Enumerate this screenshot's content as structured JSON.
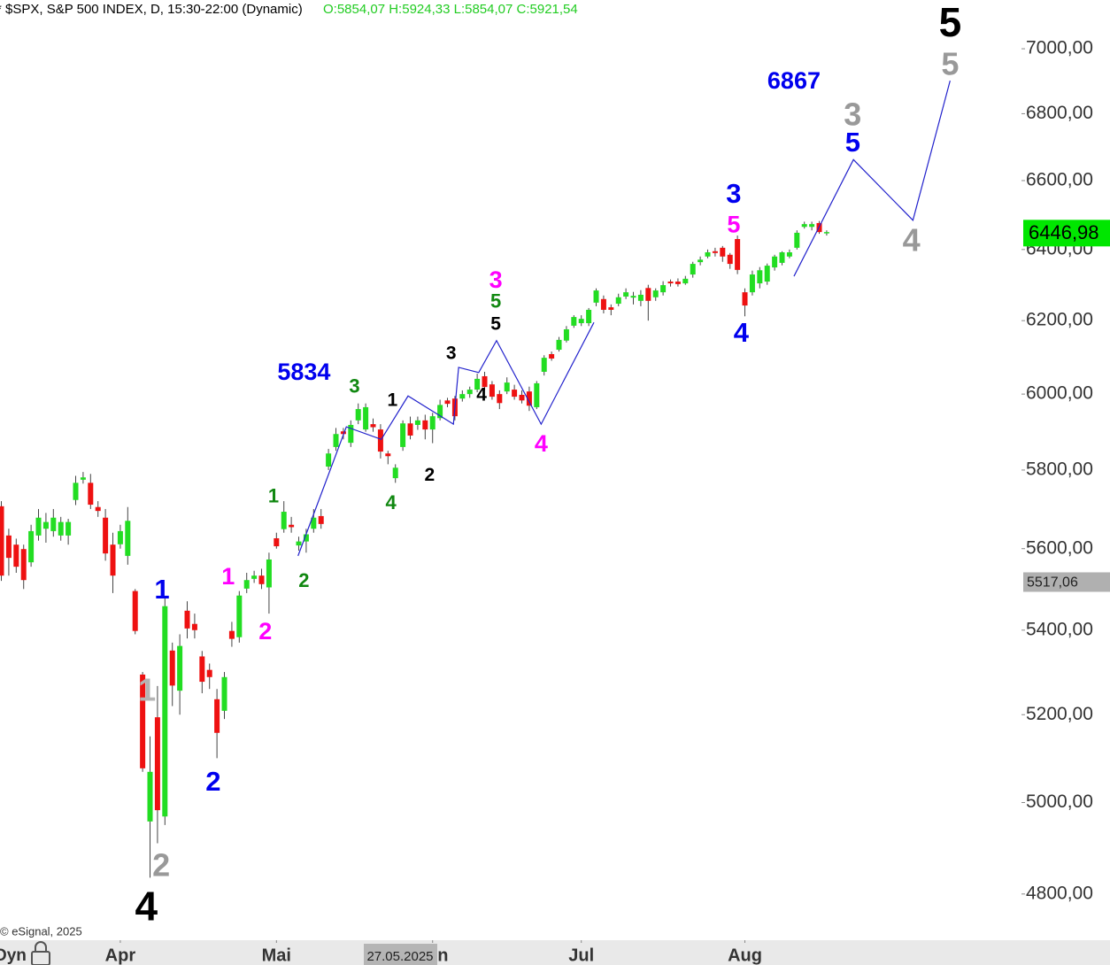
{
  "chart_data": {
    "type": "candlestick",
    "title": "$SPX, S&P 500 INDEX, D, 15:30-22:00 (Dynamic)",
    "subtitle": "O:5854,07 H:5924,33 L:5854,07 C:5921,54",
    "subtitle_color": "#22cc22",
    "log_scale": true,
    "up_color": "#22dd22",
    "down_color": "#ee1111",
    "xlim": [
      -0.18,
      137.2
    ],
    "ylim": [
      4702,
      7154
    ],
    "yticks": [
      {
        "value": 4800,
        "label": "4800,00"
      },
      {
        "value": 5000,
        "label": "5000,00"
      },
      {
        "value": 5200,
        "label": "5200,00"
      },
      {
        "value": 5400,
        "label": "5400,00"
      },
      {
        "value": 5600,
        "label": "5600,00"
      },
      {
        "value": 5800,
        "label": "5800,00"
      },
      {
        "value": 6000,
        "label": "6000,00"
      },
      {
        "value": 6200,
        "label": "6200,00"
      },
      {
        "value": 6400,
        "label": "6400,00"
      },
      {
        "value": 6600,
        "label": "6600,00"
      },
      {
        "value": 6800,
        "label": "6800,00"
      },
      {
        "value": 7000,
        "label": "7000,00"
      }
    ],
    "xticks": [
      {
        "value": 16,
        "label": "Apr"
      },
      {
        "value": 37,
        "label": "Mai"
      },
      {
        "value": 58,
        "label": "Jun"
      },
      {
        "value": 78,
        "label": "Jul"
      },
      {
        "value": 100,
        "label": "Aug"
      }
    ],
    "open": [
      5707,
      5633,
      5610,
      5599,
      5566,
      5633,
      5650,
      5644,
      5633,
      5633,
      5723,
      5775,
      5767,
      5705,
      5678,
      5610,
      5611,
      5582,
      5495,
      5294,
      4958,
      5194,
      4969,
      5351,
      5256,
      5447,
      5415,
      5337,
      5305,
      5236,
      5209,
      5398,
      5383,
      5501,
      5525,
      5533,
      5504,
      5626,
      5649,
      5660,
      5608,
      5618,
      5650,
      5682,
      5809,
      5860,
      5901,
      5871,
      5930,
      5906,
      5920,
      5906,
      5843,
      5779,
      5860,
      5922,
      5918,
      5930,
      5906,
      5936,
      5983,
      5988,
      5988,
      6000,
      6012,
      6048,
      6026,
      6000,
      6007,
      6012,
      5998,
      6007,
      5965,
      6060,
      6108,
      6120,
      6145,
      6186,
      6193,
      6193,
      6250,
      6260,
      6237,
      6247,
      6267,
      6264,
      6255,
      6291,
      6265,
      6279,
      6309,
      6309,
      6304,
      6329,
      6364,
      6380,
      6395,
      6405,
      6385,
      6430,
      6279,
      6279,
      6304,
      6309,
      6349,
      6362,
      6380,
      6405,
      6465,
      6465,
      6476,
      6447
    ],
    "high": [
      5720,
      5650,
      5625,
      5610,
      5660,
      5700,
      5690,
      5700,
      5680,
      5675,
      5785,
      5795,
      5790,
      5720,
      5700,
      5640,
      5660,
      5705,
      5500,
      5300,
      5150,
      5267,
      5481,
      5370,
      5390,
      5470,
      5440,
      5350,
      5320,
      5260,
      5300,
      5420,
      5495,
      5540,
      5545,
      5550,
      5590,
      5640,
      5720,
      5680,
      5630,
      5650,
      5700,
      5700,
      5855,
      5910,
      5910,
      5930,
      5975,
      5975,
      5935,
      5920,
      5850,
      5815,
      5930,
      5940,
      5940,
      5945,
      5950,
      5985,
      5990,
      5995,
      6010,
      6020,
      6055,
      6060,
      6035,
      6010,
      6045,
      6025,
      6010,
      6020,
      6035,
      6105,
      6115,
      6155,
      6185,
      6215,
      6215,
      6235,
      6290,
      6270,
      6245,
      6275,
      6290,
      6280,
      6285,
      6300,
      6290,
      6310,
      6315,
      6318,
      6325,
      6365,
      6380,
      6400,
      6405,
      6410,
      6390,
      6440,
      6290,
      6340,
      6350,
      6360,
      6385,
      6395,
      6400,
      6455,
      6480,
      6480,
      6482,
      6455
    ],
    "low": [
      5520,
      5533,
      5540,
      5500,
      5555,
      5620,
      5615,
      5630,
      5620,
      5610,
      5710,
      5765,
      5700,
      5680,
      5570,
      5490,
      5600,
      5560,
      5390,
      5069,
      4835,
      4910,
      4950,
      5220,
      5200,
      5380,
      5380,
      5250,
      5260,
      5100,
      5190,
      5360,
      5370,
      5490,
      5515,
      5500,
      5440,
      5600,
      5640,
      5640,
      5595,
      5590,
      5640,
      5650,
      5800,
      5850,
      5880,
      5860,
      5920,
      5900,
      5900,
      5830,
      5815,
      5767,
      5850,
      5880,
      5905,
      5880,
      5870,
      5930,
      5965,
      5930,
      5980,
      5990,
      6005,
      6010,
      5985,
      5960,
      6000,
      5985,
      5975,
      5955,
      5960,
      6050,
      6090,
      6115,
      6140,
      6180,
      6185,
      6185,
      6240,
      6220,
      6215,
      6240,
      6260,
      6245,
      6240,
      6200,
      6255,
      6270,
      6295,
      6295,
      6300,
      6320,
      6355,
      6375,
      6380,
      6365,
      6345,
      6330,
      6212,
      6270,
      6290,
      6300,
      6340,
      6355,
      6375,
      6400,
      6460,
      6455,
      6445,
      6440
    ],
    "close": [
      5533,
      5577,
      5555,
      5522,
      5644,
      5678,
      5667,
      5678,
      5667,
      5667,
      5767,
      5781,
      5711,
      5695,
      5588,
      5533,
      5644,
      5670,
      5398,
      5077,
      5069,
      4983,
      5458,
      5268,
      5362,
      5404,
      5400,
      5277,
      5288,
      5158,
      5288,
      5379,
      5484,
      5522,
      5533,
      5512,
      5573,
      5606,
      5693,
      5654,
      5618,
      5636,
      5678,
      5662,
      5843,
      5894,
      5894,
      5918,
      5960,
      5965,
      5912,
      5848,
      5836,
      5806,
      5922,
      5890,
      5930,
      5906,
      5941,
      5971,
      5974,
      5941,
      6000,
      6012,
      6041,
      6019,
      5993,
      5976,
      6031,
      5993,
      5983,
      5969,
      6029,
      6098,
      6096,
      6147,
      6176,
      6210,
      6205,
      6230,
      6284,
      6230,
      6230,
      6265,
      6279,
      6269,
      6272,
      6255,
      6284,
      6299,
      6304,
      6302,
      6317,
      6359,
      6371,
      6392,
      6390,
      6380,
      6359,
      6342,
      6242,
      6329,
      6341,
      6354,
      6380,
      6392,
      6392,
      6448,
      6473,
      6473,
      6450,
      6450
    ],
    "wave_lines": [
      {
        "color": "#2222cc",
        "x": [
          39.9,
          46.4,
          51.1,
          54.7,
          60.8,
          61.5,
          64.2,
          66.6,
          72.6,
          79.7
        ],
        "y": [
          5582,
          5913,
          5880,
          5995,
          5920,
          6072,
          6058,
          6145,
          5920,
          6195
        ]
      },
      {
        "color": "#2222cc",
        "x": [
          106.6,
          114.6,
          122.6,
          127.6
        ],
        "y": [
          6324,
          6662,
          6484,
          6901
        ]
      }
    ],
    "annotations": [
      {
        "text": "5",
        "color": "#000000",
        "x": 127.6,
        "y": 7078
      },
      {
        "text": "5",
        "color": "#999999",
        "x": 127.6,
        "y": 6950
      },
      {
        "text": "6867",
        "color": "#0000ee",
        "x": 106.6,
        "y": 6901
      },
      {
        "text": "3",
        "color": "#999999",
        "x": 114.5,
        "y": 6796
      },
      {
        "text": "5",
        "color": "#0000ee",
        "x": 114.5,
        "y": 6713
      },
      {
        "text": "4",
        "color": "#999999",
        "x": 122.4,
        "y": 6425
      },
      {
        "text": "3",
        "color": "#0000ee",
        "x": 98.5,
        "y": 6561
      },
      {
        "text": "5",
        "color": "#ff00ff",
        "x": 98.5,
        "y": 6473
      },
      {
        "text": "4",
        "color": "#0000ee",
        "x": 99.5,
        "y": 6167
      },
      {
        "text": "3",
        "color": "#ff00ff",
        "x": 66.5,
        "y": 6314
      },
      {
        "text": "5",
        "color": "#118811",
        "x": 66.5,
        "y": 6255
      },
      {
        "text": "5",
        "color": "#000000",
        "x": 66.5,
        "y": 6193
      },
      {
        "text": "3",
        "color": "#000000",
        "x": 60.5,
        "y": 6113
      },
      {
        "text": "4",
        "color": "#000000",
        "x": 64.6,
        "y": 6000
      },
      {
        "text": "4",
        "color": "#ff00ff",
        "x": 72.6,
        "y": 5869
      },
      {
        "text": "2",
        "color": "#000000",
        "x": 57.6,
        "y": 5790
      },
      {
        "text": "1",
        "color": "#000000",
        "x": 52.6,
        "y": 5986
      },
      {
        "text": "3",
        "color": "#118811",
        "x": 47.5,
        "y": 6022
      },
      {
        "text": "4",
        "color": "#118811",
        "x": 52.4,
        "y": 5718
      },
      {
        "text": "5834",
        "color": "#0000ee",
        "x": 40.7,
        "y": 6060
      },
      {
        "text": "1",
        "color": "#118811",
        "x": 36.6,
        "y": 5734
      },
      {
        "text": "2",
        "color": "#118811",
        "x": 40.7,
        "y": 5522
      },
      {
        "text": "1",
        "color": "#ff00ff",
        "x": 30.5,
        "y": 5531
      },
      {
        "text": "2",
        "color": "#ff00ff",
        "x": 35.5,
        "y": 5398
      },
      {
        "text": "1",
        "color": "#0000ee",
        "x": 21.6,
        "y": 5499
      },
      {
        "text": "2",
        "color": "#0000ee",
        "x": 28.5,
        "y": 5047
      },
      {
        "text": "1",
        "color": "#b4b4b4",
        "x": 19.6,
        "y": 5256
      },
      {
        "text": "2",
        "color": "#999999",
        "x": 21.5,
        "y": 4861
      },
      {
        "text": "4",
        "color": "#000000",
        "x": 19.5,
        "y": 4771
      }
    ],
    "price_labels": [
      {
        "value": 6446.98,
        "label": "6446,98",
        "color": "#00e600"
      },
      {
        "value": 5517.06,
        "label": "5517,06",
        "color": "#b0b0b0"
      }
    ],
    "crosshair_date": "27.05.2025"
  },
  "footer": {
    "copyright": "© eSignal, 2025",
    "mode": "Dyn"
  }
}
